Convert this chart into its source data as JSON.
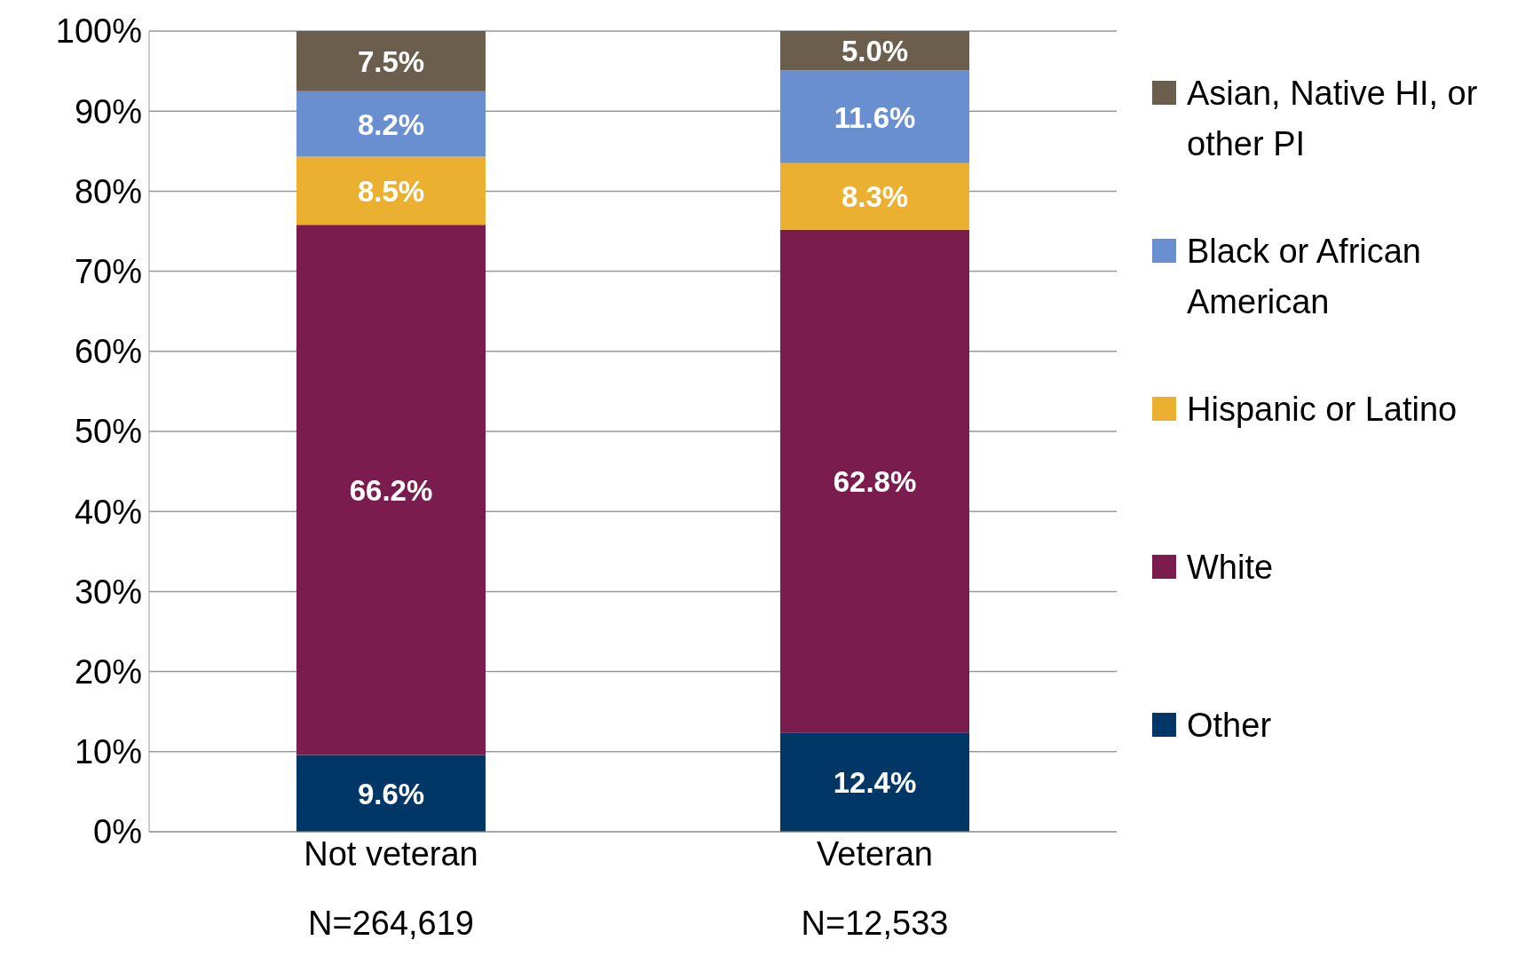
{
  "chart_data": {
    "type": "bar",
    "stacked": true,
    "categories": [
      "Not veteran",
      "Veteran"
    ],
    "series": [
      {
        "name": "Other",
        "color": "#003767",
        "values": [
          9.6,
          12.4
        ],
        "value_labels": [
          "9.6%",
          "12.4%"
        ]
      },
      {
        "name": "White",
        "color": "#7b1c4e",
        "values": [
          66.2,
          62.8
        ],
        "value_labels": [
          "66.2%",
          "62.8%"
        ]
      },
      {
        "name": "Hispanic or Latino",
        "color": "#ebb030",
        "values": [
          8.5,
          8.3
        ],
        "value_labels": [
          "8.5%",
          "8.3%"
        ]
      },
      {
        "name": "Black or African American",
        "color": "#6a8fd0",
        "values": [
          8.2,
          11.6
        ],
        "value_labels": [
          "8.2%",
          "11.6%"
        ]
      },
      {
        "name": "Asian, Native HI, or other PI",
        "color": "#6b5e4c",
        "values": [
          7.5,
          5.0
        ],
        "value_labels": [
          "7.5%",
          "5.0%"
        ]
      }
    ],
    "ylim": [
      0,
      100
    ],
    "yticks": [
      {
        "value": 0,
        "label": "0%"
      },
      {
        "value": 10,
        "label": "10%"
      },
      {
        "value": 20,
        "label": "20%"
      },
      {
        "value": 30,
        "label": "30%"
      },
      {
        "value": 40,
        "label": "40%"
      },
      {
        "value": 50,
        "label": "50%"
      },
      {
        "value": 60,
        "label": "60%"
      },
      {
        "value": 70,
        "label": "70%"
      },
      {
        "value": 80,
        "label": "80%"
      },
      {
        "value": 90,
        "label": "90%"
      },
      {
        "value": 100,
        "label": "100%"
      }
    ],
    "grid": "y",
    "legend": "right",
    "annotations": [
      "N=264,619",
      "N=12,533"
    ]
  }
}
